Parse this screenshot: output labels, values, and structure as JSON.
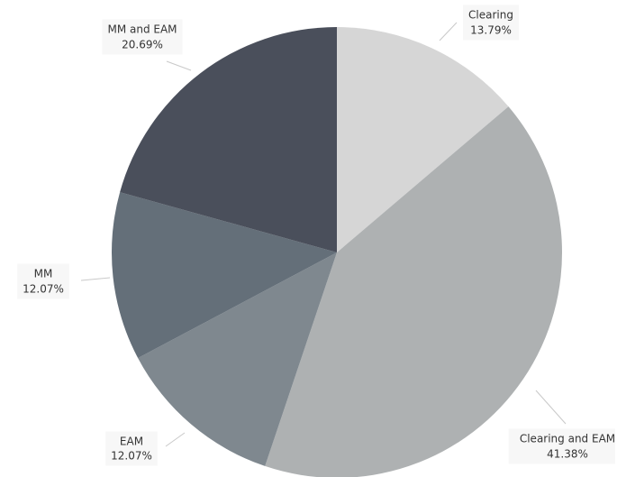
{
  "chart_data": {
    "type": "pie",
    "start_angle_deg": 0,
    "direction": "clockwise",
    "slices": [
      {
        "label": "Clearing",
        "percent_text": "13.79%",
        "value": 13.79,
        "color": "#d6d6d6"
      },
      {
        "label": "Clearing and EAM",
        "percent_text": "41.38%",
        "value": 41.38,
        "color": "#aeb1b2"
      },
      {
        "label": "EAM",
        "percent_text": "12.07%",
        "value": 12.07,
        "color": "#7f888f"
      },
      {
        "label": "MM",
        "percent_text": "12.07%",
        "value": 12.07,
        "color": "#646f79"
      },
      {
        "label": "MM and EAM",
        "percent_text": "20.69%",
        "value": 20.69,
        "color": "#4a4f5b"
      }
    ]
  }
}
